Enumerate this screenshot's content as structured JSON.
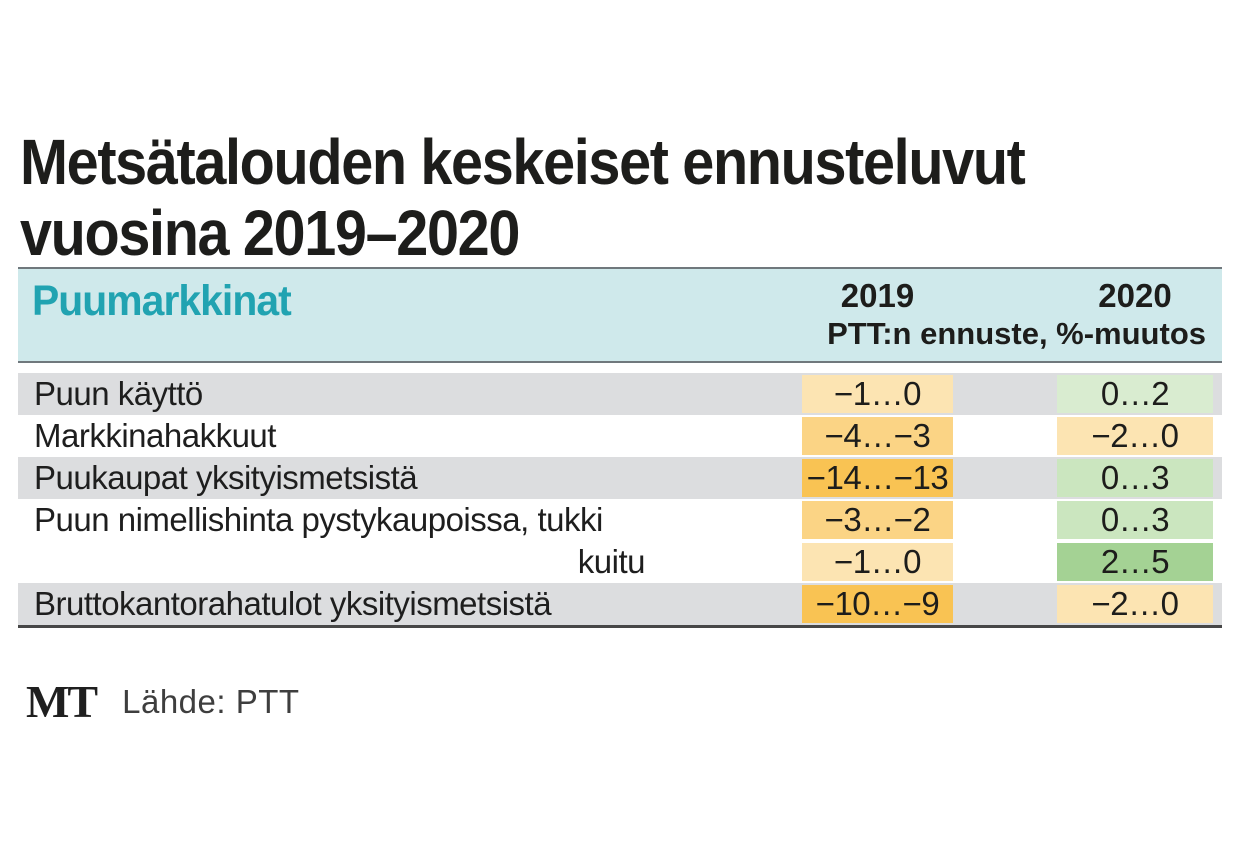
{
  "title": {
    "line1": "Metsätalouden keskeiset ennusteluvut",
    "line2": "vuosina 2019–2020"
  },
  "table": {
    "header": {
      "section_label": "Puumarkkinat",
      "col_2019": "2019",
      "col_2020": "2020",
      "subheader": "PTT:n ennuste, %-muutos"
    },
    "rows": [
      {
        "label": "Puun käyttö",
        "v2019": "−1…0",
        "v2020": "0…2",
        "color2019": "#fce4b2",
        "color2020": "#d9ecd0",
        "shaded": true,
        "label_align": "left"
      },
      {
        "label": "Markkinahakkuut",
        "v2019": "−4…−3",
        "v2020": "−2…0",
        "color2019": "#fbd485",
        "color2020": "#fce4b2",
        "shaded": false,
        "label_align": "left"
      },
      {
        "label": "Puukaupat yksityismetsistä",
        "v2019": "−14…−13",
        "v2020": "0…3",
        "color2019": "#f9c353",
        "color2020": "#cbe6bf",
        "shaded": true,
        "label_align": "left"
      },
      {
        "label": "Puun nimellishinta pystykaupoissa, tukki",
        "v2019": "−3…−2",
        "v2020": "0…3",
        "color2019": "#fbd485",
        "color2020": "#cbe6bf",
        "shaded": false,
        "label_align": "left"
      },
      {
        "label": "kuitu",
        "v2019": "−1…0",
        "v2020": "2…5",
        "color2019": "#fce4b2",
        "color2020": "#a4d294",
        "shaded": false,
        "label_align": "right"
      },
      {
        "label": "Bruttokantorahatulot yksityismetsistä",
        "v2019": "−10…−9",
        "v2020": "−2…0",
        "color2019": "#f9c353",
        "color2020": "#fce4b2",
        "shaded": true,
        "label_align": "left"
      }
    ]
  },
  "footer": {
    "logo": "MT",
    "source": "Lähde: PTT"
  },
  "colors": {
    "header_bg": "#cfe9eb",
    "teal": "#21a3b1",
    "ink": "#1d1d1b",
    "row_shade": "#dcdddf",
    "rule_top": "#70787d",
    "rule_dark": "#474747",
    "orange_light": "#fce4b2",
    "orange_mid": "#fbd485",
    "orange_strong": "#f9c353",
    "green_light": "#d9ecd0",
    "green_mid": "#cbe6bf",
    "green_strong": "#a4d294"
  },
  "chart_data": {
    "type": "table",
    "title": "Metsätalouden keskeiset ennusteluvut vuosina 2019–2020",
    "section": "Puumarkkinat",
    "columns": [
      "2019",
      "2020"
    ],
    "columns_note": "PTT:n ennuste, %-muutos",
    "rows": [
      [
        "Puun käyttö",
        "−1…0",
        "0…2"
      ],
      [
        "Markkinahakkuut",
        "−4…−3",
        "−2…0"
      ],
      [
        "Puukaupat yksityismetsistä",
        "−14…−13",
        "0…3"
      ],
      [
        "Puun nimellishinta pystykaupoissa, tukki",
        "−3…−2",
        "0…3"
      ],
      [
        "kuitu",
        "−1…0",
        "2…5"
      ],
      [
        "Bruttokantorahatulot yksityismetsistä",
        "−10…−9",
        "−2…0"
      ]
    ],
    "source": "Lähde: PTT"
  }
}
